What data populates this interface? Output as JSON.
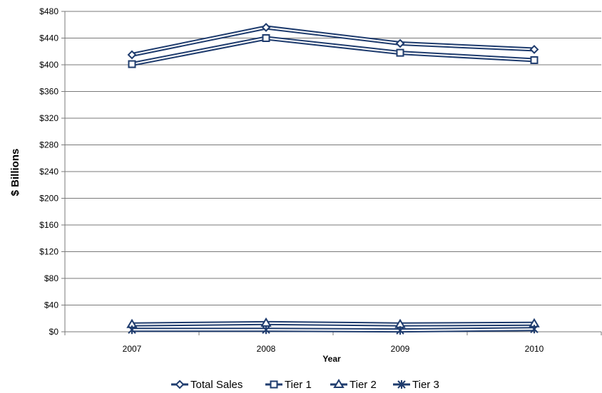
{
  "chart_data": {
    "type": "line",
    "categories": [
      "2007",
      "2008",
      "2009",
      "2010"
    ],
    "series": [
      {
        "name": "Total Sales",
        "values": [
          415,
          456,
          432,
          423
        ],
        "marker": "diamond"
      },
      {
        "name": "Tier 1",
        "values": [
          401,
          440,
          418,
          407
        ],
        "marker": "square"
      },
      {
        "name": "Tier 2",
        "values": [
          11,
          13,
          11,
          12
        ],
        "marker": "triangle"
      },
      {
        "name": "Tier 3",
        "values": [
          3,
          3,
          2,
          4
        ],
        "marker": "star"
      }
    ],
    "xlabel": "Year",
    "ylabel": "$ Billions",
    "ylim": [
      0,
      480
    ],
    "yticks": [
      0,
      40,
      80,
      120,
      160,
      200,
      240,
      280,
      320,
      360,
      400,
      440,
      480
    ],
    "ytick_labels": [
      "$0",
      "$40",
      "$80",
      "$120",
      "$160",
      "$200",
      "$240",
      "$280",
      "$320",
      "$360",
      "$400",
      "$440",
      "$480"
    ],
    "grid": true,
    "legend": "bottom",
    "colors": {
      "line": "#1f3c6e",
      "grid": "#7a7a7a",
      "axis": "#7a7a7a"
    }
  }
}
